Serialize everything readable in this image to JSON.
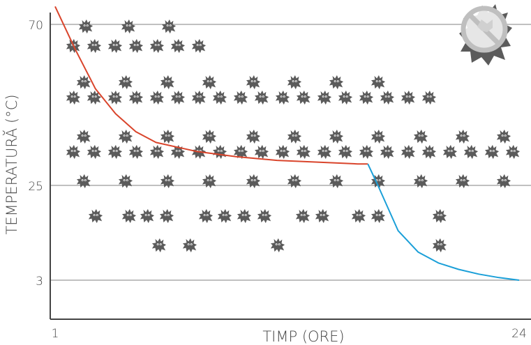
{
  "chart_data": {
    "type": "line",
    "xlabel": "TIMP (ORE)",
    "ylabel": "TEMPERATURĂ (°C)",
    "x_ticks": [
      "1",
      "24"
    ],
    "y_ticks": [
      "70",
      "25",
      "3"
    ],
    "grid": true,
    "series": [
      {
        "color": "#d9442b",
        "x": [
          1.0,
          2.0,
          3.0,
          4.0,
          5.0,
          6.0,
          8.0,
          10.0,
          12.0,
          14.0,
          16.0,
          16.5
        ],
        "y": [
          75,
          63,
          52,
          45,
          40,
          37,
          34.5,
          33,
          32,
          31.5,
          31,
          31
        ]
      },
      {
        "color": "#1a9fd8",
        "x": [
          16.5,
          17.0,
          18.0,
          19.0,
          20.0,
          21.0,
          22.0,
          23.0,
          24.0
        ],
        "y": [
          31,
          25,
          14.5,
          9.5,
          7,
          5.5,
          4.4,
          3.6,
          3
        ]
      }
    ],
    "bacteria_icon": "bacteria-icon",
    "no_bacteria_badge": "no-bacteria-icon"
  },
  "colors": {
    "axis": "#444444",
    "grid": "#9a9a9a",
    "bacteria": "#5b5b5b",
    "badge": "#bfbfbf",
    "hot_line": "#d9442b",
    "cold_line": "#1a9fd8"
  }
}
